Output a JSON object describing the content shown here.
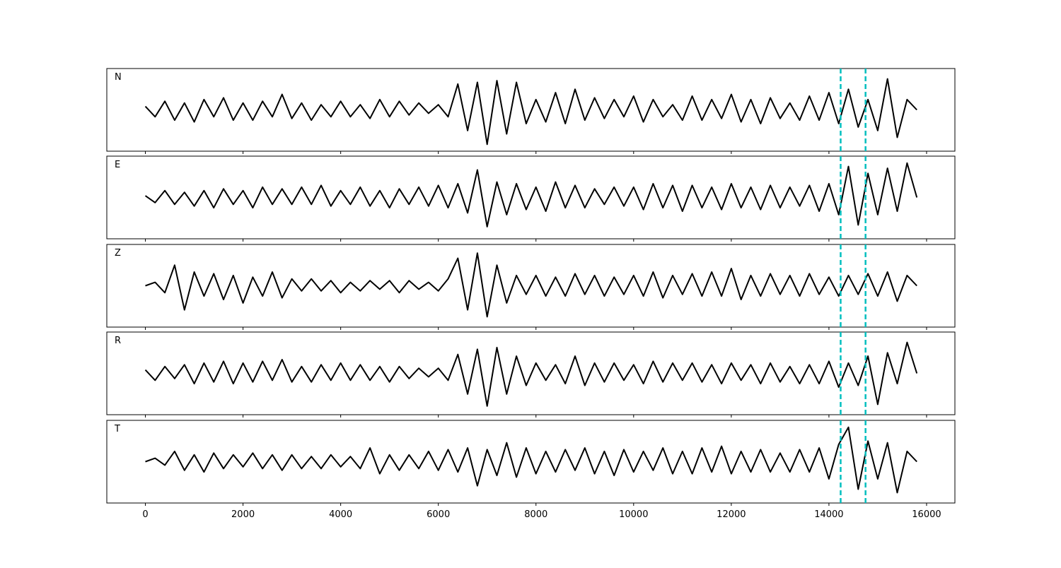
{
  "chart_data": [
    {
      "type": "line",
      "label": "N",
      "color": "#000000",
      "xlim": [
        -790,
        16580
      ],
      "ylim": [
        -1.2,
        1.2
      ],
      "vlines": [
        14240,
        14750
      ],
      "vline_color": "#00bfbf",
      "x": [
        0,
        200,
        400,
        600,
        800,
        1000,
        1200,
        1400,
        1600,
        1800,
        2000,
        2200,
        2400,
        2600,
        2800,
        3000,
        3200,
        3400,
        3600,
        3800,
        4000,
        4200,
        4400,
        4600,
        4800,
        5000,
        5200,
        5400,
        5600,
        5800,
        6000,
        6200,
        6400,
        6600,
        6800,
        7000,
        7200,
        7400,
        7600,
        7800,
        8000,
        8200,
        8400,
        8600,
        8800,
        9000,
        9200,
        9400,
        9600,
        9800,
        10000,
        10200,
        10400,
        10600,
        10800,
        11000,
        11200,
        11400,
        11600,
        11800,
        12000,
        12200,
        12400,
        12600,
        12800,
        13000,
        13200,
        13400,
        13600,
        13800,
        14000,
        14200,
        14400,
        14600,
        14800,
        15000,
        15200,
        15400,
        15600,
        15800
      ],
      "values": [
        0.1,
        -0.2,
        0.25,
        -0.3,
        0.2,
        -0.35,
        0.3,
        -0.2,
        0.35,
        -0.3,
        0.2,
        -0.3,
        0.25,
        -0.2,
        0.45,
        -0.25,
        0.2,
        -0.3,
        0.15,
        -0.2,
        0.25,
        -0.2,
        0.15,
        -0.25,
        0.3,
        -0.2,
        0.25,
        -0.15,
        0.2,
        -0.1,
        0.15,
        -0.2,
        0.75,
        -0.6,
        0.8,
        -1.0,
        0.85,
        -0.7,
        0.8,
        -0.4,
        0.3,
        -0.35,
        0.5,
        -0.4,
        0.6,
        -0.3,
        0.35,
        -0.25,
        0.3,
        -0.2,
        0.4,
        -0.35,
        0.3,
        -0.2,
        0.15,
        -0.3,
        0.4,
        -0.3,
        0.3,
        -0.25,
        0.45,
        -0.35,
        0.3,
        -0.4,
        0.35,
        -0.25,
        0.2,
        -0.3,
        0.4,
        -0.3,
        0.5,
        -0.4,
        0.6,
        -0.5,
        0.3,
        -0.6,
        0.9,
        -0.8,
        0.3,
        0.0
      ]
    },
    {
      "type": "line",
      "label": "E",
      "color": "#000000",
      "xlim": [
        -790,
        16580
      ],
      "ylim": [
        -1.2,
        1.2
      ],
      "vlines": [
        14240,
        14750
      ],
      "vline_color": "#00bfbf",
      "x": [
        0,
        200,
        400,
        600,
        800,
        1000,
        1200,
        1400,
        1600,
        1800,
        2000,
        2200,
        2400,
        2600,
        2800,
        3000,
        3200,
        3400,
        3600,
        3800,
        4000,
        4200,
        4400,
        4600,
        4800,
        5000,
        5200,
        5400,
        5600,
        5800,
        6000,
        6200,
        6400,
        6600,
        6800,
        7000,
        7200,
        7400,
        7600,
        7800,
        8000,
        8200,
        8400,
        8600,
        8800,
        9000,
        9200,
        9400,
        9600,
        9800,
        10000,
        10200,
        10400,
        10600,
        10800,
        11000,
        11200,
        11400,
        11600,
        11800,
        12000,
        12200,
        12400,
        12600,
        12800,
        13000,
        13200,
        13400,
        13600,
        13800,
        14000,
        14200,
        14400,
        14600,
        14800,
        15000,
        15200,
        15400,
        15600,
        15800
      ],
      "values": [
        0.05,
        -0.15,
        0.2,
        -0.2,
        0.15,
        -0.25,
        0.2,
        -0.3,
        0.25,
        -0.2,
        0.2,
        -0.3,
        0.3,
        -0.2,
        0.25,
        -0.2,
        0.3,
        -0.2,
        0.35,
        -0.25,
        0.2,
        -0.2,
        0.3,
        -0.25,
        0.2,
        -0.3,
        0.25,
        -0.2,
        0.3,
        -0.25,
        0.35,
        -0.3,
        0.4,
        -0.45,
        0.8,
        -0.85,
        0.45,
        -0.5,
        0.4,
        -0.35,
        0.3,
        -0.4,
        0.45,
        -0.3,
        0.35,
        -0.3,
        0.25,
        -0.2,
        0.3,
        -0.25,
        0.3,
        -0.35,
        0.4,
        -0.3,
        0.35,
        -0.4,
        0.35,
        -0.3,
        0.3,
        -0.35,
        0.4,
        -0.3,
        0.3,
        -0.35,
        0.35,
        -0.3,
        0.3,
        -0.25,
        0.35,
        -0.4,
        0.4,
        -0.5,
        0.9,
        -0.8,
        0.7,
        -0.5,
        0.85,
        -0.4,
        1.0,
        0.0
      ]
    },
    {
      "type": "line",
      "label": "Z",
      "color": "#000000",
      "xlim": [
        -790,
        16580
      ],
      "ylim": [
        -1.2,
        1.2
      ],
      "vlines": [
        14240,
        14750
      ],
      "vline_color": "#00bfbf",
      "x": [
        0,
        200,
        400,
        600,
        800,
        1000,
        1200,
        1400,
        1600,
        1800,
        2000,
        2200,
        2400,
        2600,
        2800,
        3000,
        3200,
        3400,
        3600,
        3800,
        4000,
        4200,
        4400,
        4600,
        4800,
        5000,
        5200,
        5400,
        5600,
        5800,
        6000,
        6200,
        6400,
        6600,
        6800,
        7000,
        7200,
        7400,
        7600,
        7800,
        8000,
        8200,
        8400,
        8600,
        8800,
        9000,
        9200,
        9400,
        9600,
        9800,
        10000,
        10200,
        10400,
        10600,
        10800,
        11000,
        11200,
        11400,
        11600,
        11800,
        12000,
        12200,
        12400,
        12600,
        12800,
        13000,
        13200,
        13400,
        13600,
        13800,
        14000,
        14200,
        14400,
        14600,
        14800,
        15000,
        15200,
        15400,
        15600,
        15800
      ],
      "values": [
        0.0,
        0.1,
        -0.2,
        0.6,
        -0.7,
        0.4,
        -0.3,
        0.35,
        -0.4,
        0.3,
        -0.5,
        0.25,
        -0.3,
        0.4,
        -0.35,
        0.2,
        -0.15,
        0.2,
        -0.15,
        0.15,
        -0.2,
        0.1,
        -0.15,
        0.15,
        -0.1,
        0.15,
        -0.2,
        0.15,
        -0.1,
        0.1,
        -0.15,
        0.2,
        0.8,
        -0.7,
        0.95,
        -0.9,
        0.6,
        -0.5,
        0.3,
        -0.25,
        0.3,
        -0.3,
        0.25,
        -0.3,
        0.35,
        -0.25,
        0.3,
        -0.3,
        0.25,
        -0.25,
        0.3,
        -0.3,
        0.4,
        -0.35,
        0.3,
        -0.25,
        0.35,
        -0.3,
        0.4,
        -0.3,
        0.5,
        -0.4,
        0.3,
        -0.3,
        0.35,
        -0.25,
        0.3,
        -0.3,
        0.35,
        -0.25,
        0.25,
        -0.3,
        0.3,
        -0.25,
        0.35,
        -0.3,
        0.4,
        -0.45,
        0.3,
        0.0
      ]
    },
    {
      "type": "line",
      "label": "R",
      "color": "#000000",
      "xlim": [
        -790,
        16580
      ],
      "ylim": [
        -1.2,
        1.2
      ],
      "vlines": [
        14240,
        14750
      ],
      "vline_color": "#00bfbf",
      "x": [
        0,
        200,
        400,
        600,
        800,
        1000,
        1200,
        1400,
        1600,
        1800,
        2000,
        2200,
        2400,
        2600,
        2800,
        3000,
        3200,
        3400,
        3600,
        3800,
        4000,
        4200,
        4400,
        4600,
        4800,
        5000,
        5200,
        5400,
        5600,
        5800,
        6000,
        6200,
        6400,
        6600,
        6800,
        7000,
        7200,
        7400,
        7600,
        7800,
        8000,
        8200,
        8400,
        8600,
        8800,
        9000,
        9200,
        9400,
        9600,
        9800,
        10000,
        10200,
        10400,
        10600,
        10800,
        11000,
        11200,
        11400,
        11600,
        11800,
        12000,
        12200,
        12400,
        12600,
        12800,
        13000,
        13200,
        13400,
        13600,
        13800,
        14000,
        14200,
        14400,
        14600,
        14800,
        15000,
        15200,
        15400,
        15600,
        15800
      ],
      "values": [
        0.1,
        -0.2,
        0.2,
        -0.15,
        0.25,
        -0.3,
        0.3,
        -0.25,
        0.35,
        -0.3,
        0.3,
        -0.25,
        0.35,
        -0.2,
        0.4,
        -0.25,
        0.2,
        -0.25,
        0.25,
        -0.2,
        0.3,
        -0.2,
        0.25,
        -0.2,
        0.2,
        -0.25,
        0.2,
        -0.15,
        0.15,
        -0.1,
        0.15,
        -0.2,
        0.55,
        -0.6,
        0.7,
        -0.95,
        0.75,
        -0.6,
        0.5,
        -0.35,
        0.3,
        -0.2,
        0.25,
        -0.3,
        0.5,
        -0.35,
        0.3,
        -0.25,
        0.3,
        -0.2,
        0.25,
        -0.3,
        0.35,
        -0.25,
        0.3,
        -0.2,
        0.3,
        -0.25,
        0.25,
        -0.3,
        0.3,
        -0.2,
        0.25,
        -0.3,
        0.3,
        -0.25,
        0.2,
        -0.3,
        0.25,
        -0.3,
        0.35,
        -0.4,
        0.3,
        -0.35,
        0.5,
        -0.9,
        0.6,
        -0.3,
        0.9,
        0.0
      ]
    },
    {
      "type": "line",
      "label": "T",
      "color": "#000000",
      "xlim": [
        -790,
        16580
      ],
      "ylim": [
        -1.2,
        1.2
      ],
      "vlines": [
        14240,
        14750
      ],
      "vline_color": "#00bfbf",
      "x": [
        0,
        200,
        400,
        600,
        800,
        1000,
        1200,
        1400,
        1600,
        1800,
        2000,
        2200,
        2400,
        2600,
        2800,
        3000,
        3200,
        3400,
        3600,
        3800,
        4000,
        4200,
        4400,
        4600,
        4800,
        5000,
        5200,
        5400,
        5600,
        5800,
        6000,
        6200,
        6400,
        6600,
        6800,
        7000,
        7200,
        7400,
        7600,
        7800,
        8000,
        8200,
        8400,
        8600,
        8800,
        9000,
        9200,
        9400,
        9600,
        9800,
        10000,
        10200,
        10400,
        10600,
        10800,
        11000,
        11200,
        11400,
        11600,
        11800,
        12000,
        12200,
        12400,
        12600,
        12800,
        13000,
        13200,
        13400,
        13600,
        13800,
        14000,
        14200,
        14400,
        14600,
        14800,
        15000,
        15200,
        15400,
        15600,
        15800
      ],
      "values": [
        0.0,
        0.1,
        -0.1,
        0.3,
        -0.25,
        0.2,
        -0.3,
        0.25,
        -0.2,
        0.2,
        -0.15,
        0.25,
        -0.2,
        0.2,
        -0.25,
        0.2,
        -0.2,
        0.15,
        -0.2,
        0.2,
        -0.15,
        0.15,
        -0.2,
        0.4,
        -0.35,
        0.2,
        -0.25,
        0.2,
        -0.2,
        0.3,
        -0.25,
        0.35,
        -0.3,
        0.4,
        -0.7,
        0.35,
        -0.4,
        0.55,
        -0.45,
        0.4,
        -0.35,
        0.3,
        -0.3,
        0.35,
        -0.25,
        0.4,
        -0.35,
        0.3,
        -0.4,
        0.35,
        -0.3,
        0.3,
        -0.25,
        0.4,
        -0.35,
        0.3,
        -0.35,
        0.4,
        -0.3,
        0.45,
        -0.35,
        0.3,
        -0.3,
        0.35,
        -0.3,
        0.25,
        -0.3,
        0.35,
        -0.3,
        0.4,
        -0.5,
        0.5,
        1.0,
        -0.8,
        0.6,
        -0.5,
        0.55,
        -0.9,
        0.3,
        0.0
      ],
      "xticks": [
        0,
        2000,
        4000,
        6000,
        8000,
        10000,
        12000,
        14000,
        16000
      ]
    }
  ]
}
